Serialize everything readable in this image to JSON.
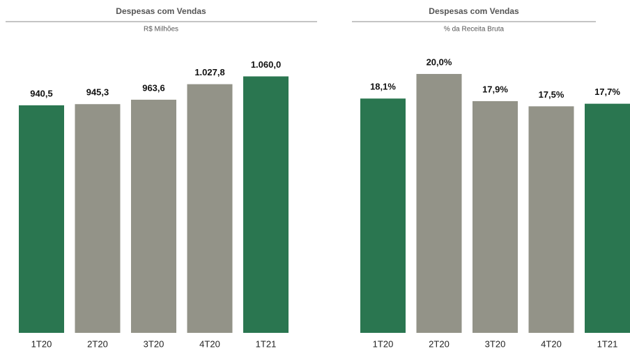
{
  "chart_data": [
    {
      "type": "bar",
      "title": "Despesas com Vendas",
      "subtitle": "R$ Milhões",
      "categories": [
        "1T20",
        "2T20",
        "3T20",
        "4T20",
        "1T21"
      ],
      "values": [
        940.5,
        945.3,
        963.6,
        1027.8,
        1060.0
      ],
      "value_labels": [
        "940,5",
        "945,3",
        "963,6",
        "1.027,8",
        "1.060,0"
      ],
      "colors": [
        "#2a7650",
        "#939388",
        "#939388",
        "#939388",
        "#2a7650"
      ],
      "ylim": [
        0,
        1145
      ]
    },
    {
      "type": "bar",
      "title": "Despesas com Vendas",
      "subtitle": "% da Receita Bruta",
      "categories": [
        "1T20",
        "2T20",
        "3T20",
        "4T20",
        "1T21"
      ],
      "values": [
        18.1,
        20.0,
        17.9,
        17.5,
        17.7
      ],
      "value_labels": [
        "18,1%",
        "20,0%",
        "17,9%",
        "17,5%",
        "17,7%"
      ],
      "colors": [
        "#2a7650",
        "#939388",
        "#939388",
        "#939388",
        "#2a7650"
      ],
      "ylim": [
        0,
        21.4
      ]
    }
  ]
}
